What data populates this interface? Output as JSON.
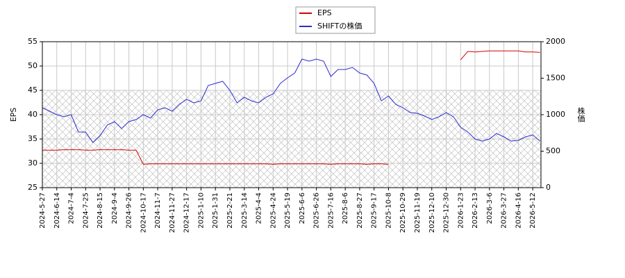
{
  "chart_data": {
    "type": "line",
    "y_label": "EPS",
    "y2_label": "株価",
    "legend": "top",
    "grid": true,
    "xlim": [
      0,
      484
    ],
    "xticks": [
      {
        "value": 0,
        "label": "2024-5-27"
      },
      {
        "value": 14,
        "label": "2024-6-14"
      },
      {
        "value": 28,
        "label": "2024-7-4"
      },
      {
        "value": 42,
        "label": "2024-7-25"
      },
      {
        "value": 56,
        "label": "2024-8-15"
      },
      {
        "value": 70,
        "label": "2024-9-4"
      },
      {
        "value": 84,
        "label": "2024-9-26"
      },
      {
        "value": 98,
        "label": "2024-10-17"
      },
      {
        "value": 112,
        "label": "2024-11-7"
      },
      {
        "value": 126,
        "label": "2024-11-27"
      },
      {
        "value": 140,
        "label": "2024-12-17"
      },
      {
        "value": 154,
        "label": "2025-1-10"
      },
      {
        "value": 168,
        "label": "2025-1-31"
      },
      {
        "value": 182,
        "label": "2025-2-21"
      },
      {
        "value": 196,
        "label": "2025-3-14"
      },
      {
        "value": 210,
        "label": "2025-4-4"
      },
      {
        "value": 224,
        "label": "2025-4-24"
      },
      {
        "value": 238,
        "label": "2025-5-19"
      },
      {
        "value": 252,
        "label": "2025-6-6"
      },
      {
        "value": 266,
        "label": "2025-6-26"
      },
      {
        "value": 280,
        "label": "2025-7-16"
      },
      {
        "value": 294,
        "label": "2025-8-6"
      },
      {
        "value": 308,
        "label": "2025-8-27"
      },
      {
        "value": 322,
        "label": "2025-9-17"
      },
      {
        "value": 336,
        "label": "2025-10-8"
      },
      {
        "value": 350,
        "label": "2025-10-29"
      },
      {
        "value": 364,
        "label": "2025-11-19"
      },
      {
        "value": 378,
        "label": "2025-12-10"
      },
      {
        "value": 392,
        "label": "2025-12-30"
      },
      {
        "value": 406,
        "label": "2026-1-23"
      },
      {
        "value": 420,
        "label": "2026-2-13"
      },
      {
        "value": 434,
        "label": "2026-3-6"
      },
      {
        "value": 448,
        "label": "2026-3-27"
      },
      {
        "value": 462,
        "label": "2026-4-16"
      },
      {
        "value": 476,
        "label": "2026-5-12"
      }
    ],
    "ylim": [
      25,
      55
    ],
    "yticks": [
      25,
      30,
      35,
      40,
      45,
      50,
      55
    ],
    "y2lim": [
      0,
      2000
    ],
    "y2ticks": [
      0,
      500,
      1000,
      1500,
      2000
    ],
    "x": [
      0,
      7,
      14,
      21,
      28,
      35,
      42,
      49,
      56,
      63,
      70,
      77,
      84,
      91,
      98,
      105,
      112,
      119,
      126,
      133,
      140,
      147,
      154,
      161,
      168,
      175,
      182,
      189,
      196,
      203,
      210,
      217,
      224,
      231,
      238,
      245,
      252,
      259,
      266,
      273,
      280,
      287,
      294,
      301,
      308,
      315,
      322,
      329,
      336,
      343,
      350,
      357,
      364,
      371,
      378,
      385,
      392,
      399,
      406,
      413,
      420,
      427,
      434,
      441,
      448,
      455,
      462,
      469,
      476,
      483
    ],
    "series": [
      {
        "name": "EPS",
        "color": "#d40000",
        "values": [
          32.7,
          32.7,
          32.7,
          32.8,
          32.8,
          32.8,
          32.7,
          32.7,
          32.8,
          32.8,
          32.8,
          32.8,
          32.7,
          32.7,
          29.8,
          29.9,
          29.9,
          29.9,
          29.9,
          29.9,
          29.9,
          29.9,
          29.9,
          29.9,
          29.9,
          29.9,
          29.9,
          29.9,
          29.9,
          29.9,
          29.9,
          29.9,
          29.8,
          29.9,
          29.9,
          29.9,
          29.9,
          29.9,
          29.9,
          29.9,
          29.8,
          29.9,
          29.9,
          29.9,
          29.9,
          29.8,
          29.9,
          29.9,
          29.8,
          null,
          null,
          null,
          null,
          null,
          null,
          null,
          null,
          null,
          51.3,
          53.0,
          52.9,
          53.0,
          53.1,
          53.1,
          53.1,
          53.1,
          53.1,
          52.9,
          52.9,
          52.8
        ]
      },
      {
        "name": "SHIFTの株価",
        "color": "#2b2bd0",
        "axis": "y2",
        "values": [
          1095,
          1048,
          1000,
          971,
          1000,
          762,
          762,
          619,
          714,
          857,
          905,
          810,
          905,
          933,
          1000,
          952,
          1067,
          1095,
          1048,
          1143,
          1210,
          1162,
          1190,
          1400,
          1429,
          1457,
          1333,
          1162,
          1238,
          1190,
          1162,
          1238,
          1286,
          1429,
          1505,
          1571,
          1762,
          1733,
          1762,
          1733,
          1524,
          1619,
          1619,
          1648,
          1571,
          1543,
          1429,
          1190,
          1257,
          1143,
          1095,
          1029,
          1019,
          981,
          933,
          971,
          1029,
          971,
          829,
          762,
          667,
          638,
          667,
          743,
          695,
          638,
          648,
          695,
          724,
          638
        ]
      }
    ]
  }
}
